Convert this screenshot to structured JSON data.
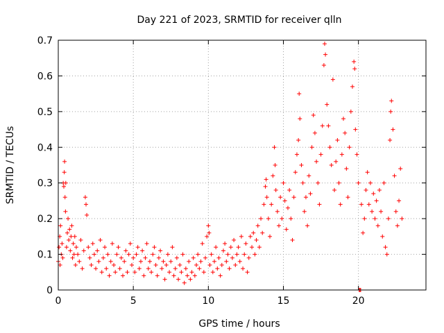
{
  "chart_data": {
    "type": "scatter",
    "title": "Day 221 of 2023, SRMTID for receiver qlln",
    "xlabel": "GPS time / hours",
    "ylabel": "SRMTID / TECUs",
    "xlim": [
      0,
      24.5
    ],
    "ylim": [
      0,
      0.7
    ],
    "xticks": [
      0,
      5,
      10,
      15,
      20
    ],
    "xtick_labels": [
      "0",
      "5",
      "10",
      "15",
      "20"
    ],
    "yticks": [
      0,
      0.1,
      0.2,
      0.3,
      0.4,
      0.5,
      0.6,
      0.7
    ],
    "ytick_labels": [
      "0",
      "0.1",
      "0.2",
      "0.3",
      "0.4",
      "0.5",
      "0.6",
      "0.7"
    ],
    "grid": true,
    "marker": "plus",
    "color": "#ff0000",
    "series": [
      {
        "name": "SRMTID",
        "points": [
          [
            0.0,
            0.08
          ],
          [
            0.05,
            0.12
          ],
          [
            0.1,
            0.15
          ],
          [
            0.12,
            0.07
          ],
          [
            0.15,
            0.18
          ],
          [
            0.2,
            0.1
          ],
          [
            0.25,
            0.13
          ],
          [
            0.3,
            0.09
          ],
          [
            0.33,
            0.3
          ],
          [
            0.37,
            0.29
          ],
          [
            0.4,
            0.33
          ],
          [
            0.42,
            0.36
          ],
          [
            0.45,
            0.26
          ],
          [
            0.48,
            0.22
          ],
          [
            0.5,
            0.3
          ],
          [
            0.55,
            0.12
          ],
          [
            0.6,
            0.16
          ],
          [
            0.65,
            0.2
          ],
          [
            0.7,
            0.14
          ],
          [
            0.75,
            0.17
          ],
          [
            0.8,
            0.11
          ],
          [
            0.85,
            0.15
          ],
          [
            0.9,
            0.18
          ],
          [
            0.95,
            0.09
          ],
          [
            1.0,
            0.13
          ],
          [
            1.05,
            0.1
          ],
          [
            1.1,
            0.15
          ],
          [
            1.15,
            0.07
          ],
          [
            1.2,
            0.12
          ],
          [
            1.3,
            0.1
          ],
          [
            1.4,
            0.08
          ],
          [
            1.5,
            0.14
          ],
          [
            1.6,
            0.06
          ],
          [
            1.7,
            0.11
          ],
          [
            1.8,
            0.26
          ],
          [
            1.85,
            0.24
          ],
          [
            1.9,
            0.21
          ],
          [
            2.0,
            0.12
          ],
          [
            2.1,
            0.09
          ],
          [
            2.2,
            0.07
          ],
          [
            2.3,
            0.13
          ],
          [
            2.4,
            0.1
          ],
          [
            2.5,
            0.06
          ],
          [
            2.6,
            0.11
          ],
          [
            2.7,
            0.08
          ],
          [
            2.8,
            0.14
          ],
          [
            2.9,
            0.05
          ],
          [
            3.0,
            0.09
          ],
          [
            3.1,
            0.12
          ],
          [
            3.2,
            0.06
          ],
          [
            3.3,
            0.1
          ],
          [
            3.4,
            0.04
          ],
          [
            3.5,
            0.08
          ],
          [
            3.6,
            0.13
          ],
          [
            3.7,
            0.07
          ],
          [
            3.8,
            0.05
          ],
          [
            3.9,
            0.1
          ],
          [
            4.0,
            0.12
          ],
          [
            4.1,
            0.06
          ],
          [
            4.2,
            0.09
          ],
          [
            4.3,
            0.04
          ],
          [
            4.4,
            0.08
          ],
          [
            4.5,
            0.11
          ],
          [
            4.6,
            0.05
          ],
          [
            4.7,
            0.1
          ],
          [
            4.8,
            0.13
          ],
          [
            4.9,
            0.07
          ],
          [
            5.0,
            0.09
          ],
          [
            5.1,
            0.05
          ],
          [
            5.2,
            0.1
          ],
          [
            5.3,
            0.12
          ],
          [
            5.4,
            0.06
          ],
          [
            5.5,
            0.08
          ],
          [
            5.6,
            0.11
          ],
          [
            5.7,
            0.04
          ],
          [
            5.8,
            0.09
          ],
          [
            5.9,
            0.13
          ],
          [
            6.0,
            0.06
          ],
          [
            6.1,
            0.08
          ],
          [
            6.2,
            0.05
          ],
          [
            6.3,
            0.1
          ],
          [
            6.4,
            0.12
          ],
          [
            6.5,
            0.07
          ],
          [
            6.6,
            0.04
          ],
          [
            6.7,
            0.09
          ],
          [
            6.8,
            0.11
          ],
          [
            6.9,
            0.06
          ],
          [
            7.0,
            0.08
          ],
          [
            7.1,
            0.03
          ],
          [
            7.2,
            0.07
          ],
          [
            7.3,
            0.1
          ],
          [
            7.4,
            0.05
          ],
          [
            7.5,
            0.08
          ],
          [
            7.6,
            0.12
          ],
          [
            7.7,
            0.04
          ],
          [
            7.8,
            0.06
          ],
          [
            7.9,
            0.09
          ],
          [
            8.0,
            0.03
          ],
          [
            8.1,
            0.07
          ],
          [
            8.2,
            0.05
          ],
          [
            8.3,
            0.1
          ],
          [
            8.4,
            0.02
          ],
          [
            8.5,
            0.06
          ],
          [
            8.6,
            0.04
          ],
          [
            8.7,
            0.08
          ],
          [
            8.8,
            0.03
          ],
          [
            8.9,
            0.05
          ],
          [
            9.0,
            0.09
          ],
          [
            9.1,
            0.04
          ],
          [
            9.2,
            0.07
          ],
          [
            9.3,
            0.1
          ],
          [
            9.4,
            0.06
          ],
          [
            9.5,
            0.08
          ],
          [
            9.6,
            0.13
          ],
          [
            9.7,
            0.05
          ],
          [
            9.8,
            0.09
          ],
          [
            9.9,
            0.15
          ],
          [
            10.0,
            0.18
          ],
          [
            10.05,
            0.16
          ],
          [
            10.1,
            0.07
          ],
          [
            10.2,
            0.1
          ],
          [
            10.3,
            0.05
          ],
          [
            10.4,
            0.08
          ],
          [
            10.5,
            0.12
          ],
          [
            10.6,
            0.06
          ],
          [
            10.7,
            0.09
          ],
          [
            10.8,
            0.04
          ],
          [
            10.9,
            0.07
          ],
          [
            11.0,
            0.11
          ],
          [
            11.1,
            0.13
          ],
          [
            11.2,
            0.08
          ],
          [
            11.3,
            0.1
          ],
          [
            11.4,
            0.06
          ],
          [
            11.5,
            0.12
          ],
          [
            11.6,
            0.09
          ],
          [
            11.7,
            0.14
          ],
          [
            11.8,
            0.07
          ],
          [
            11.9,
            0.1
          ],
          [
            12.0,
            0.12
          ],
          [
            12.1,
            0.08
          ],
          [
            12.2,
            0.15
          ],
          [
            12.3,
            0.06
          ],
          [
            12.4,
            0.1
          ],
          [
            12.5,
            0.13
          ],
          [
            12.6,
            0.05
          ],
          [
            12.7,
            0.09
          ],
          [
            12.8,
            0.15
          ],
          [
            12.9,
            0.12
          ],
          [
            13.0,
            0.16
          ],
          [
            13.1,
            0.1
          ],
          [
            13.2,
            0.14
          ],
          [
            13.3,
            0.18
          ],
          [
            13.4,
            0.12
          ],
          [
            13.5,
            0.2
          ],
          [
            13.6,
            0.16
          ],
          [
            13.7,
            0.24
          ],
          [
            13.8,
            0.29
          ],
          [
            13.85,
            0.31
          ],
          [
            13.9,
            0.26
          ],
          [
            14.0,
            0.2
          ],
          [
            14.1,
            0.15
          ],
          [
            14.2,
            0.24
          ],
          [
            14.3,
            0.32
          ],
          [
            14.4,
            0.4
          ],
          [
            14.45,
            0.35
          ],
          [
            14.5,
            0.28
          ],
          [
            14.6,
            0.22
          ],
          [
            14.7,
            0.18
          ],
          [
            14.8,
            0.26
          ],
          [
            14.9,
            0.2
          ],
          [
            15.0,
            0.3
          ],
          [
            15.1,
            0.25
          ],
          [
            15.2,
            0.17
          ],
          [
            15.3,
            0.23
          ],
          [
            15.4,
            0.28
          ],
          [
            15.5,
            0.2
          ],
          [
            15.6,
            0.14
          ],
          [
            15.7,
            0.26
          ],
          [
            15.8,
            0.33
          ],
          [
            15.9,
            0.38
          ],
          [
            16.0,
            0.42
          ],
          [
            16.05,
            0.55
          ],
          [
            16.1,
            0.48
          ],
          [
            16.2,
            0.35
          ],
          [
            16.3,
            0.3
          ],
          [
            16.4,
            0.22
          ],
          [
            16.5,
            0.26
          ],
          [
            16.6,
            0.18
          ],
          [
            16.7,
            0.32
          ],
          [
            16.8,
            0.27
          ],
          [
            16.9,
            0.4
          ],
          [
            17.0,
            0.49
          ],
          [
            17.1,
            0.44
          ],
          [
            17.2,
            0.36
          ],
          [
            17.3,
            0.3
          ],
          [
            17.4,
            0.24
          ],
          [
            17.5,
            0.38
          ],
          [
            17.6,
            0.46
          ],
          [
            17.7,
            0.63
          ],
          [
            17.75,
            0.69
          ],
          [
            17.8,
            0.66
          ],
          [
            17.9,
            0.52
          ],
          [
            18.0,
            0.46
          ],
          [
            18.1,
            0.4
          ],
          [
            18.2,
            0.35
          ],
          [
            18.3,
            0.59
          ],
          [
            18.4,
            0.28
          ],
          [
            18.5,
            0.36
          ],
          [
            18.6,
            0.42
          ],
          [
            18.7,
            0.3
          ],
          [
            18.8,
            0.24
          ],
          [
            18.9,
            0.38
          ],
          [
            19.0,
            0.48
          ],
          [
            19.1,
            0.44
          ],
          [
            19.2,
            0.34
          ],
          [
            19.3,
            0.26
          ],
          [
            19.4,
            0.4
          ],
          [
            19.5,
            0.5
          ],
          [
            19.6,
            0.57
          ],
          [
            19.7,
            0.64
          ],
          [
            19.75,
            0.62
          ],
          [
            19.8,
            0.45
          ],
          [
            19.9,
            0.38
          ],
          [
            20.0,
            0.3
          ],
          [
            20.05,
            0.0
          ],
          [
            20.1,
            0.0
          ],
          [
            20.15,
            0.0
          ],
          [
            20.2,
            0.24
          ],
          [
            20.3,
            0.16
          ],
          [
            20.4,
            0.2
          ],
          [
            20.5,
            0.28
          ],
          [
            20.6,
            0.33
          ],
          [
            20.7,
            0.24
          ],
          [
            20.8,
            0.3
          ],
          [
            20.9,
            0.22
          ],
          [
            21.0,
            0.27
          ],
          [
            21.1,
            0.2
          ],
          [
            21.2,
            0.25
          ],
          [
            21.3,
            0.18
          ],
          [
            21.4,
            0.28
          ],
          [
            21.5,
            0.22
          ],
          [
            21.6,
            0.15
          ],
          [
            21.7,
            0.3
          ],
          [
            21.8,
            0.12
          ],
          [
            21.9,
            0.1
          ],
          [
            22.0,
            0.2
          ],
          [
            22.1,
            0.42
          ],
          [
            22.15,
            0.5
          ],
          [
            22.2,
            0.53
          ],
          [
            22.3,
            0.45
          ],
          [
            22.4,
            0.32
          ],
          [
            22.5,
            0.22
          ],
          [
            22.6,
            0.18
          ],
          [
            22.7,
            0.25
          ],
          [
            22.8,
            0.34
          ],
          [
            22.9,
            0.2
          ]
        ]
      }
    ]
  }
}
